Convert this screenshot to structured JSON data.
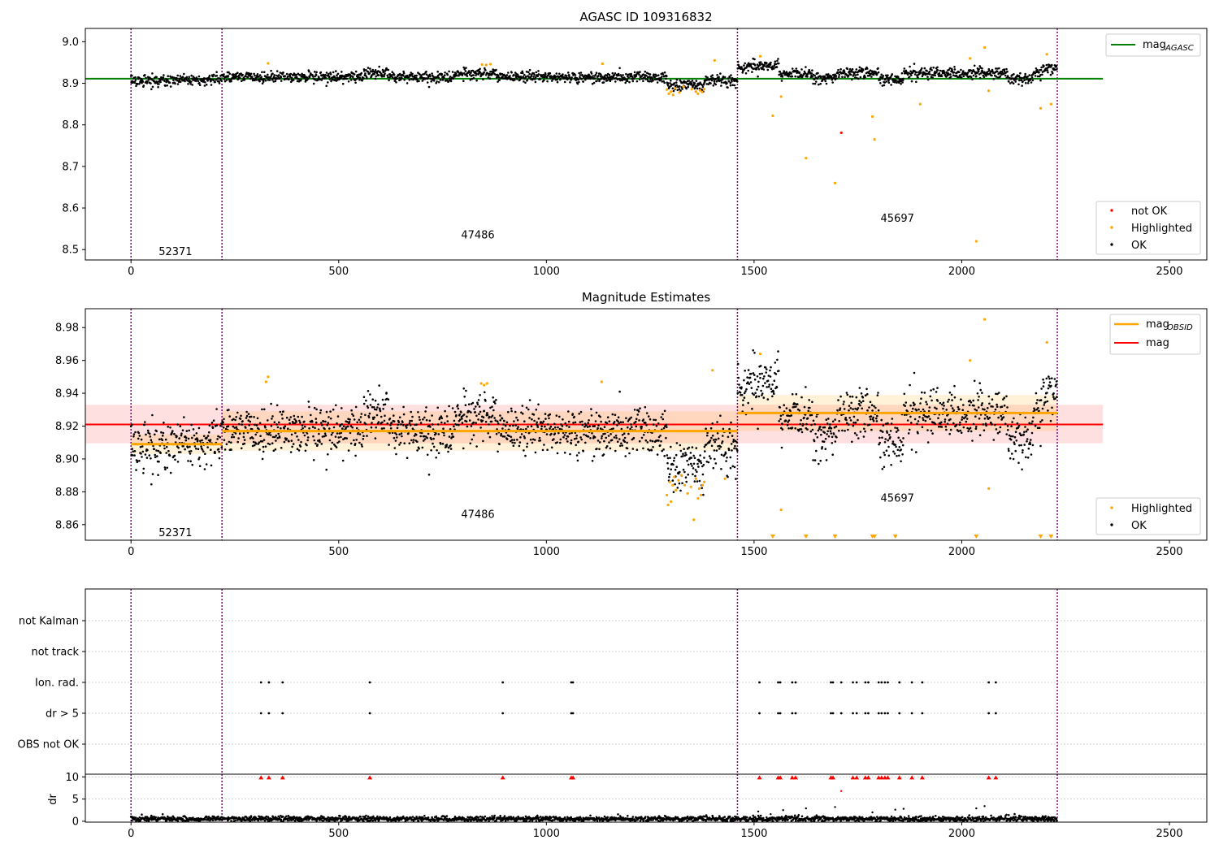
{
  "chart_data": [
    {
      "type": "scatter",
      "title": "AGASC ID 109316832",
      "xlim": [
        -110,
        2590
      ],
      "ylim": [
        8.475,
        9.032
      ],
      "x_ticks": [
        0,
        500,
        1000,
        1500,
        2000,
        2500
      ],
      "y_ticks": [
        8.5,
        8.6,
        8.7,
        8.8,
        8.9,
        9.0
      ],
      "y_tick_labels": [
        "8.5",
        "8.6",
        "8.7",
        "8.8",
        "8.9",
        "9.0"
      ],
      "grid": false,
      "obs_boundaries": [
        0,
        219,
        1460,
        2230
      ],
      "obs_labels": [
        {
          "text": "52371",
          "x": 107,
          "y": 8.495
        },
        {
          "text": "47486",
          "x": 835,
          "y": 8.535
        },
        {
          "text": "45697",
          "x": 1845,
          "y": 8.575
        }
      ],
      "mag_agasc": 8.911,
      "mag_agasc_range": [
        -110,
        2340
      ],
      "lines_legend": {
        "label": "mag",
        "subscript": "AGASC",
        "position": "top-right"
      },
      "markers_legend": {
        "position": "bottom-right",
        "entries": [
          {
            "label": "not OK",
            "color": "#ff0000"
          },
          {
            "label": "Highlighted",
            "color": "#ffa500"
          },
          {
            "label": "OK",
            "color": "#000000"
          }
        ]
      },
      "series": [
        {
          "name": "not OK",
          "x": [
            1710
          ],
          "y": [
            8.781
          ]
        },
        {
          "name": "Highlighted",
          "x": [
            1290,
            1295,
            1300,
            1305,
            1310,
            1320,
            1330,
            1350,
            1360,
            1365,
            1370,
            1375,
            1380,
            330,
            845,
            855,
            865,
            1135,
            1405,
            1515,
            1545,
            1565,
            1625,
            1695,
            1785,
            1790,
            1900,
            2020,
            2035,
            2055,
            2065,
            2190,
            2205,
            2215
          ],
          "y": [
            8.885,
            8.875,
            8.88,
            8.872,
            8.888,
            8.878,
            8.892,
            8.886,
            8.88,
            8.875,
            8.883,
            8.879,
            8.886,
            8.948,
            8.945,
            8.944,
            8.946,
            8.947,
            8.955,
            8.965,
            8.822,
            8.868,
            8.72,
            8.66,
            8.82,
            8.765,
            8.85,
            8.96,
            8.52,
            8.986,
            8.882,
            8.84,
            8.97,
            8.85
          ]
        }
      ]
    },
    {
      "type": "scatter",
      "title": "Magnitude Estimates",
      "xlim": [
        -110,
        2590
      ],
      "ylim": [
        8.8505,
        8.9915
      ],
      "x_ticks": [
        0,
        500,
        1000,
        1500,
        2000,
        2500
      ],
      "y_ticks": [
        8.86,
        8.88,
        8.9,
        8.92,
        8.94,
        8.96,
        8.98
      ],
      "y_tick_labels": [
        "8.86",
        "8.88",
        "8.90",
        "8.92",
        "8.94",
        "8.96",
        "8.98"
      ],
      "grid": false,
      "obs_boundaries": [
        0,
        219,
        1460,
        2230
      ],
      "obs_labels": [
        {
          "text": "52371",
          "x": 107,
          "y": 8.855
        },
        {
          "text": "47486",
          "x": 835,
          "y": 8.866
        },
        {
          "text": "45697",
          "x": 1845,
          "y": 8.876
        }
      ],
      "mag": 8.921,
      "mag_band": [
        8.9095,
        8.933
      ],
      "mag_range": [
        -110,
        2340
      ],
      "mag_obsid": [
        {
          "x0": 0,
          "x1": 219,
          "value": 8.909,
          "band": [
            8.903,
            8.915
          ]
        },
        {
          "x0": 219,
          "x1": 1460,
          "value": 8.917,
          "band": [
            8.905,
            8.929
          ]
        },
        {
          "x0": 1460,
          "x1": 2230,
          "value": 8.928,
          "band": [
            8.917,
            8.939
          ]
        }
      ],
      "lines_legend": {
        "position": "top-right",
        "entries": [
          {
            "label": "mag",
            "subscript": "OBSID",
            "color": "#ffa500"
          },
          {
            "label": "mag",
            "subscript": "",
            "color": "#ff0000"
          }
        ]
      },
      "markers_legend": {
        "position": "bottom-right",
        "entries": [
          {
            "label": "Highlighted",
            "color": "#ffa500"
          },
          {
            "label": "OK",
            "color": "#000000"
          }
        ]
      },
      "series": [
        {
          "name": "Highlighted",
          "x": [
            1290,
            1293,
            1297,
            1300,
            1304,
            1308,
            1312,
            1318,
            1325,
            1333,
            1340,
            1348,
            1355,
            1360,
            1365,
            1368,
            1372,
            1376,
            1380,
            325,
            330,
            843,
            850,
            857,
            1133,
            1400,
            1430,
            1515,
            1565,
            2020,
            2055,
            2065,
            2205
          ],
          "y": [
            8.878,
            8.872,
            8.886,
            8.874,
            8.884,
            8.889,
            8.881,
            8.887,
            8.89,
            8.884,
            8.879,
            8.883,
            8.863,
            8.888,
            8.876,
            8.882,
            8.878,
            8.884,
            8.886,
            8.947,
            8.95,
            8.946,
            8.945,
            8.946,
            8.947,
            8.954,
            8.888,
            8.964,
            8.869,
            8.96,
            8.985,
            8.882,
            8.971
          ]
        },
        {
          "name": "Highlighted (clipped)",
          "x": [
            1545,
            1625,
            1695,
            1785,
            1790,
            1840,
            2035,
            2190,
            2215
          ],
          "y": [
            8.8515,
            8.8515,
            8.8515,
            8.8515,
            8.8515,
            8.8515,
            8.8515,
            8.8515,
            8.8515
          ]
        }
      ]
    },
    {
      "type": "scatter",
      "title": "",
      "xlim": [
        -110,
        2590
      ],
      "categories": [
        "not Kalman",
        "not track",
        "Ion. rad.",
        "dr > 5",
        "OBS not OK"
      ],
      "obs_boundaries": [
        0,
        219,
        1460,
        2230
      ],
      "flag_x": [
        313,
        332,
        365,
        575,
        895,
        1060,
        1064,
        1513,
        1558,
        1563,
        1592,
        1600,
        1685,
        1690,
        1710,
        1738,
        1747,
        1768,
        1775,
        1800,
        1807,
        1815,
        1822,
        1850,
        1880,
        1905,
        2065,
        2082
      ],
      "series": [
        {
          "name": "Ion. rad.",
          "x": "flag_x"
        },
        {
          "name": "dr > 5",
          "x": "flag_x"
        }
      ]
    },
    {
      "type": "scatter",
      "title": "",
      "ylabel": "dr",
      "xlim": [
        -110,
        2590
      ],
      "ylim": [
        -0.2,
        10.6
      ],
      "x_ticks": [
        0,
        500,
        1000,
        1500,
        2000,
        2500
      ],
      "y_ticks": [
        0,
        5,
        10
      ],
      "y_tick_labels": [
        "0",
        "5",
        "10"
      ],
      "obs_boundaries": [
        0,
        219,
        1460,
        2230
      ],
      "clip_value": 10,
      "series": [
        {
          "name": "dr > 10 (clipped)",
          "color": "#ff0000",
          "x": [
            313,
            332,
            365,
            575,
            895,
            1060,
            1064,
            1513,
            1558,
            1563,
            1592,
            1600,
            1685,
            1690,
            1738,
            1747,
            1768,
            1775,
            1800,
            1807,
            1815,
            1822,
            1850,
            1880,
            1905,
            2065,
            2082
          ],
          "y": [
            9.8,
            9.8,
            9.8,
            9.8,
            9.8,
            9.8,
            9.8,
            9.8,
            9.8,
            9.8,
            9.8,
            9.8,
            9.8,
            9.8,
            9.8,
            9.8,
            9.8,
            9.8,
            9.8,
            9.8,
            9.8,
            9.8,
            9.8,
            9.8,
            9.8,
            9.8,
            9.8
          ]
        },
        {
          "name": "dr 5-10",
          "color": "#ff0000",
          "x": [
            1710
          ],
          "y": [
            6.8
          ]
        },
        {
          "name": "dr elevated",
          "color": "#000000",
          "x": [
            1510,
            1540,
            1570,
            1625,
            1695,
            1785,
            1840,
            1860,
            2035,
            2055
          ],
          "y": [
            2.2,
            1.6,
            2.5,
            2.9,
            3.2,
            2.0,
            2.6,
            2.8,
            2.9,
            3.4
          ]
        }
      ]
    }
  ]
}
